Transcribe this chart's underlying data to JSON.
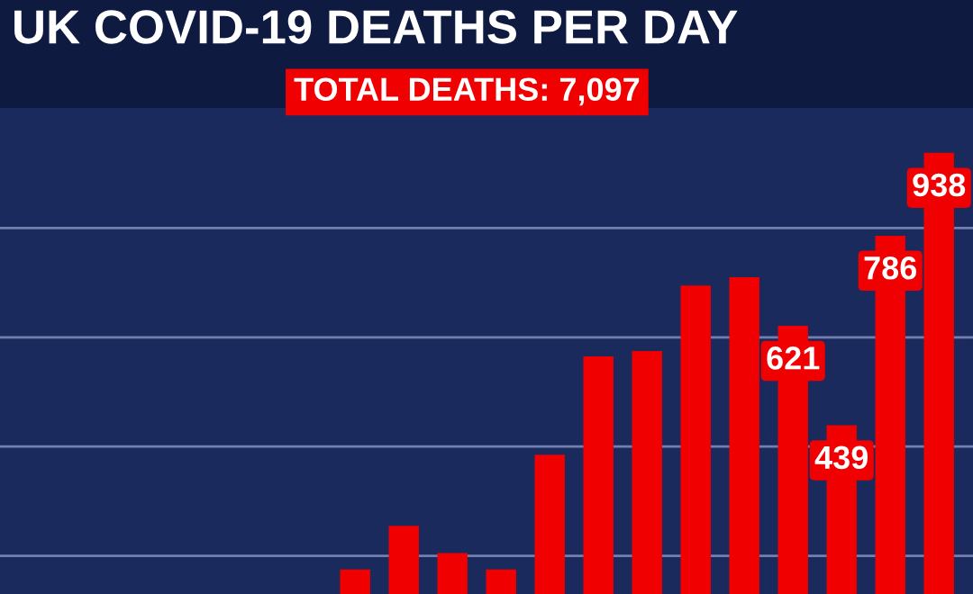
{
  "chart_data": {
    "type": "bar",
    "title": "UK COVID-19 DEATHS PER DAY",
    "annotations": [
      "TOTAL DEATHS: 7,097"
    ],
    "categories": [
      null,
      null,
      null,
      null,
      null,
      null,
      null,
      null,
      null,
      null,
      null,
      null,
      null
    ],
    "series": [
      {
        "color": "#f00000",
        "values": [
          175,
          255,
          205,
          175,
          385,
          565,
          575,
          695,
          710,
          621,
          439,
          786,
          938
        ],
        "value_labels": [
          null,
          null,
          null,
          null,
          null,
          null,
          null,
          null,
          null,
          "621",
          "439",
          "786",
          "938"
        ]
      }
    ],
    "ylim": [
      130,
      1020
    ],
    "yticks": [
      {
        "value": 200,
        "label": null
      },
      {
        "value": 400,
        "label": null
      },
      {
        "value": 600,
        "label": null
      },
      {
        "value": 800,
        "label": null
      }
    ],
    "grid": "y",
    "legend": false
  }
}
